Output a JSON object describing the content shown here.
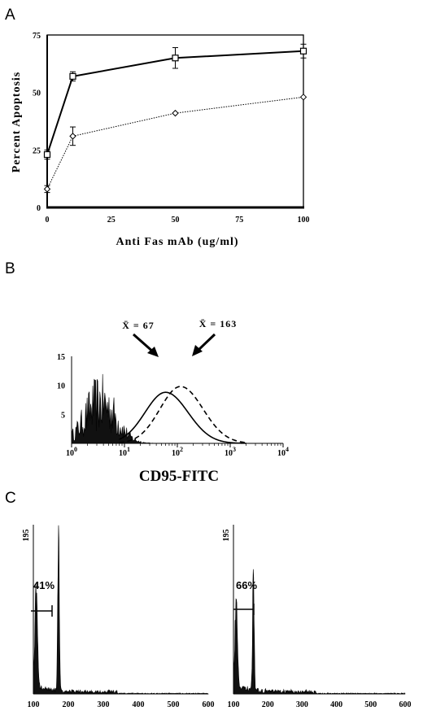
{
  "panels": {
    "a": {
      "letter": "A"
    },
    "b": {
      "letter": "B"
    },
    "c": {
      "letter": "C"
    }
  },
  "chart_data": [
    {
      "panel": "A",
      "type": "line",
      "xlabel": "Anti Fas mAb (ug/ml)",
      "ylabel": "Percent Apoptosis",
      "xlim": [
        0,
        100
      ],
      "ylim": [
        0,
        75
      ],
      "xticks": [
        "0",
        "25",
        "50",
        "75",
        "100"
      ],
      "yticks": [
        "0",
        "25",
        "50",
        "75"
      ],
      "x": [
        0,
        10,
        50,
        100
      ],
      "series": [
        {
          "marker": "square",
          "line": "solid",
          "values": [
            23,
            57,
            65,
            68
          ],
          "errors": [
            2,
            2,
            4.5,
            3
          ]
        },
        {
          "marker": "diamond",
          "line": "dotted",
          "values": [
            8,
            31,
            41,
            48
          ],
          "errors": [
            1.5,
            4,
            0,
            0
          ]
        }
      ]
    },
    {
      "panel": "B",
      "type": "area",
      "xlabel": "CD95-FITC",
      "xscale": "log",
      "xlim": [
        1,
        10000
      ],
      "ylim": [
        0,
        15
      ],
      "xticks": [
        "10^0",
        "10^1",
        "10^2",
        "10^3",
        "10^4"
      ],
      "yticks": [
        "0",
        "5",
        "10",
        "15"
      ],
      "annotations": [
        {
          "text": "X̄ = 67",
          "mean": 67,
          "curve": "solid"
        },
        {
          "text": "X̄ = 163",
          "mean": 163,
          "curve": "dashed"
        }
      ],
      "series": [
        {
          "line": "filled-histogram",
          "range": [
            1,
            40
          ],
          "peak_y": 11
        },
        {
          "line": "solid",
          "peak_x": 60,
          "peak_y": 8.8
        },
        {
          "line": "dashed",
          "peak_x": 115,
          "peak_y": 9.8
        }
      ]
    },
    {
      "panel": "C-left",
      "type": "area",
      "xlim": [
        100,
        600
      ],
      "xticks": [
        "100",
        "200",
        "300",
        "400",
        "500",
        "600"
      ],
      "ymax_label": "195",
      "gate_label": "41%",
      "gate_fraction": 0.41,
      "peaks": [
        {
          "x": 108,
          "height": 0.6
        },
        {
          "x": 172,
          "height": 1.0
        }
      ]
    },
    {
      "panel": "C-right",
      "type": "area",
      "xlim": [
        100,
        600
      ],
      "xticks": [
        "100",
        "200",
        "300",
        "400",
        "500",
        "600"
      ],
      "ymax_label": "195",
      "gate_label": "66%",
      "gate_fraction": 0.66,
      "peaks": [
        {
          "x": 108,
          "height": 0.55
        },
        {
          "x": 158,
          "height": 0.75
        }
      ]
    }
  ]
}
